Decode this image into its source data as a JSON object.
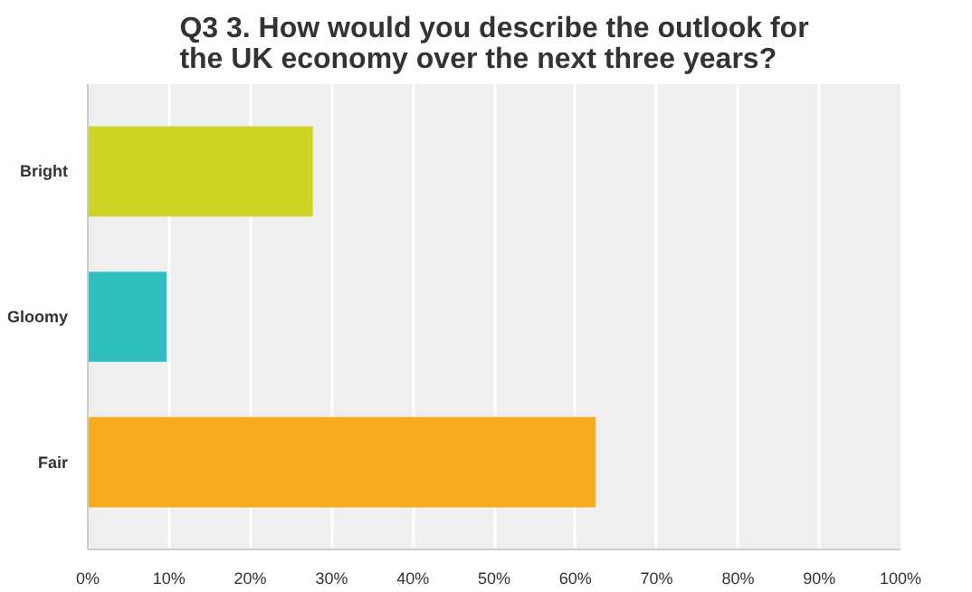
{
  "chart_data": {
    "type": "bar",
    "orientation": "horizontal",
    "title": "Q3 3. How would you describe the outlook for the UK economy over the next three years?",
    "categories": [
      "Bright",
      "Gloomy",
      "Fair"
    ],
    "values": [
      27.7,
      9.7,
      62.5
    ],
    "colors": [
      "#cdd424",
      "#2fbfbf",
      "#f5ad1f"
    ],
    "xlim": [
      0,
      100
    ],
    "xticks": [
      {
        "value": 0,
        "label": "0%"
      },
      {
        "value": 10,
        "label": "10%"
      },
      {
        "value": 20,
        "label": "20%"
      },
      {
        "value": 30,
        "label": "30%"
      },
      {
        "value": 40,
        "label": "40%"
      },
      {
        "value": 50,
        "label": "50%"
      },
      {
        "value": 60,
        "label": "60%"
      },
      {
        "value": 70,
        "label": "70%"
      },
      {
        "value": 80,
        "label": "80%"
      },
      {
        "value": 90,
        "label": "90%"
      },
      {
        "value": 100,
        "label": "100%"
      }
    ],
    "grid": "x"
  }
}
